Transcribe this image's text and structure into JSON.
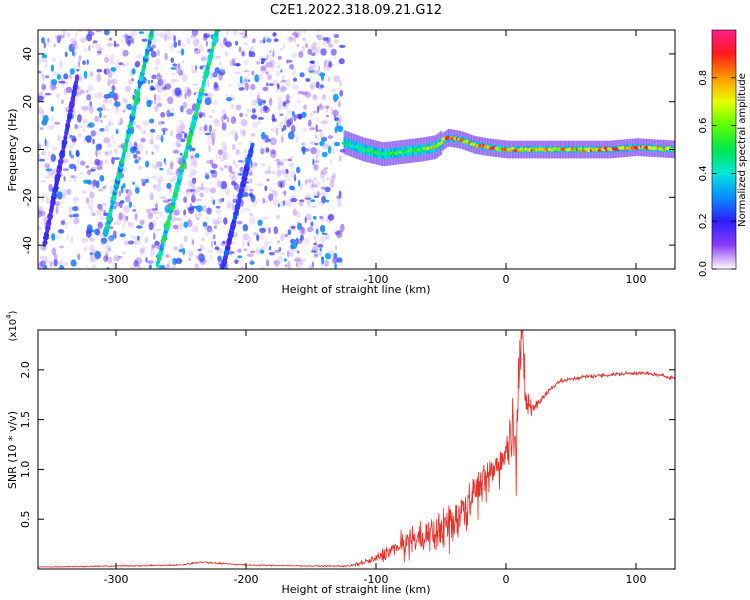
{
  "title": "C2E1.2022.318.09.21.G12",
  "chart_data": [
    {
      "type": "heatmap",
      "xlabel": "Height of straight line (km)",
      "ylabel": "Frequency (Hz)",
      "xlim": [
        -360,
        130
      ],
      "ylim": [
        -50,
        50
      ],
      "xticks": [
        -300,
        -200,
        -100,
        0,
        100
      ],
      "xtick_labels": [
        "-300",
        "-200",
        "-100",
        "0",
        "100"
      ],
      "yticks": [
        -40,
        -20,
        0,
        20,
        40
      ],
      "ytick_labels": [
        "-40",
        "-20",
        "0",
        "20",
        "40"
      ],
      "colorbar": {
        "label": "Normalized spectral amplitude",
        "range": [
          0,
          1
        ],
        "ticks": [
          0.0,
          0.2,
          0.4,
          0.6,
          0.8
        ],
        "tick_labels": [
          "0.0",
          "0.2",
          "0.4",
          "0.6",
          "0.8"
        ],
        "colormap": "rainbow"
      },
      "noise_region_x": [
        -360,
        -123
      ],
      "diagonal_streaks": [
        {
          "x1": -308,
          "y1": -35,
          "x2": -272,
          "y2": 50,
          "amplitude": 0.45
        },
        {
          "x1": -268,
          "y1": -48,
          "x2": -222,
          "y2": 50,
          "amplitude": 0.5
        },
        {
          "x1": -218,
          "y1": -50,
          "x2": -195,
          "y2": 2,
          "amplitude": 0.25
        },
        {
          "x1": -355,
          "y1": -40,
          "x2": -330,
          "y2": 30,
          "amplitude": 0.22
        }
      ],
      "ridge": {
        "x": [
          -125,
          -110,
          -95,
          -80,
          -65,
          -55,
          -45,
          -35,
          -25,
          -15,
          0,
          20,
          40,
          60,
          80,
          100,
          130
        ],
        "y": [
          3,
          0,
          -2,
          -1,
          0,
          1,
          5,
          4,
          2,
          1,
          0,
          0,
          0,
          0,
          0,
          1,
          0
        ],
        "amplitude": [
          0.45,
          0.5,
          0.55,
          0.6,
          0.7,
          0.75,
          0.95,
          0.9,
          0.85,
          0.9,
          0.85,
          0.8,
          0.8,
          0.82,
          0.85,
          0.95,
          0.75
        ]
      }
    },
    {
      "type": "line",
      "xlabel": "Height of straight line (km)",
      "ylabel": "SNR (10 * v/v)",
      "scale_label": "(x10",
      "scale_exponent": "4",
      "xlim": [
        -360,
        130
      ],
      "ylim": [
        0,
        2.4
      ],
      "xticks": [
        -300,
        -200,
        -100,
        0,
        100
      ],
      "xtick_labels": [
        "-300",
        "-200",
        "-100",
        "0",
        "100"
      ],
      "yticks": [
        0.5,
        1.0,
        1.5,
        2.0
      ],
      "ytick_labels": [
        "0.5",
        "1.0",
        "1.5",
        "2.0"
      ],
      "color": "#e8302a",
      "x": [
        -360,
        -300,
        -250,
        -235,
        -200,
        -150,
        -120,
        -100,
        -80,
        -60,
        -40,
        -30,
        -20,
        -10,
        0,
        8,
        12,
        15,
        20,
        30,
        40,
        60,
        80,
        100,
        110,
        130
      ],
      "y": [
        0.02,
        0.03,
        0.04,
        0.07,
        0.04,
        0.03,
        0.03,
        0.1,
        0.25,
        0.35,
        0.5,
        0.7,
        0.85,
        1.0,
        1.2,
        1.5,
        2.38,
        1.7,
        1.6,
        1.75,
        1.88,
        1.93,
        1.95,
        1.97,
        1.96,
        1.92
      ],
      "noise_amplitude": [
        0.005,
        0.006,
        0.007,
        0.01,
        0.006,
        0.005,
        0.01,
        0.05,
        0.1,
        0.15,
        0.18,
        0.16,
        0.15,
        0.15,
        0.18,
        0.35,
        0.3,
        0.2,
        0.08,
        0.04,
        0.02,
        0.02,
        0.02,
        0.02,
        0.02,
        0.02
      ]
    }
  ]
}
